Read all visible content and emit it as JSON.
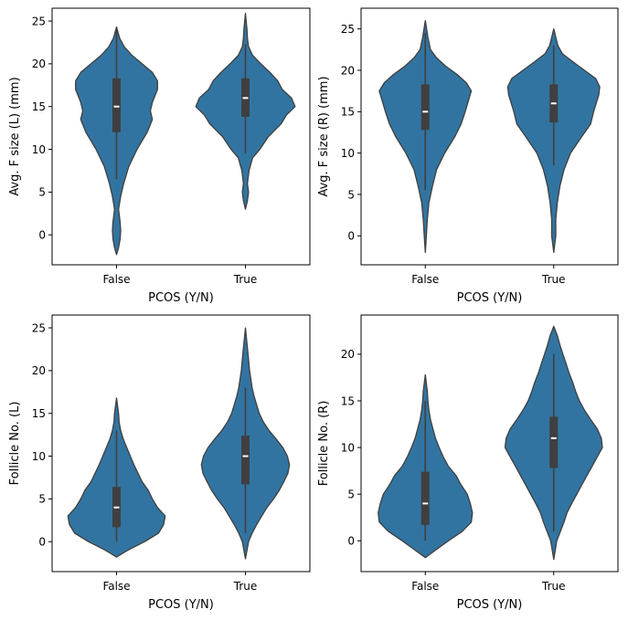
{
  "chart_data": [
    {
      "type": "violin",
      "xlabel": "PCOS (Y/N)",
      "ylabel": "Avg. F size (L) (mm)",
      "categories": [
        "False",
        "True"
      ],
      "ylim": [
        -3.5,
        26.5
      ],
      "yticks": [
        0,
        5,
        10,
        15,
        20,
        25
      ],
      "color": "#3274a1",
      "violins": [
        {
          "category": "False",
          "median": 15,
          "q1": 12,
          "q3": 18.3,
          "whisker_low": 6.5,
          "whisker_high": 24.2,
          "shape": [
            [
              -2.3,
              0
            ],
            [
              -1.5,
              0.04
            ],
            [
              -0.5,
              0.07
            ],
            [
              0.5,
              0.08
            ],
            [
              1.5,
              0.07
            ],
            [
              3,
              0.04
            ],
            [
              4.5,
              0.08
            ],
            [
              6,
              0.14
            ],
            [
              8,
              0.24
            ],
            [
              10,
              0.4
            ],
            [
              12,
              0.6
            ],
            [
              13.5,
              0.7
            ],
            [
              14.5,
              0.66
            ],
            [
              15.5,
              0.7
            ],
            [
              17,
              0.8
            ],
            [
              18,
              0.8
            ],
            [
              19,
              0.7
            ],
            [
              20,
              0.5
            ],
            [
              21,
              0.3
            ],
            [
              22,
              0.15
            ],
            [
              23,
              0.06
            ],
            [
              24.3,
              0
            ]
          ]
        },
        {
          "category": "True",
          "median": 16,
          "q1": 13.8,
          "q3": 18.3,
          "whisker_low": 9.5,
          "whisker_high": 22.3,
          "shape": [
            [
              3,
              0
            ],
            [
              4,
              0.04
            ],
            [
              5,
              0.06
            ],
            [
              6,
              0.04
            ],
            [
              7.5,
              0.07
            ],
            [
              9,
              0.14
            ],
            [
              10,
              0.28
            ],
            [
              11.5,
              0.45
            ],
            [
              13,
              0.7
            ],
            [
              14,
              0.8
            ],
            [
              15,
              0.97
            ],
            [
              16,
              0.9
            ],
            [
              17,
              0.72
            ],
            [
              18,
              0.63
            ],
            [
              19,
              0.48
            ],
            [
              20,
              0.3
            ],
            [
              21,
              0.14
            ],
            [
              22,
              0.06
            ],
            [
              23,
              0.04
            ],
            [
              24,
              0.03
            ],
            [
              25.9,
              0
            ]
          ]
        }
      ]
    },
    {
      "type": "violin",
      "xlabel": "PCOS (Y/N)",
      "ylabel": "Avg. F size (R) (mm)",
      "categories": [
        "False",
        "True"
      ],
      "ylim": [
        -3.5,
        27.5
      ],
      "yticks": [
        0,
        5,
        10,
        15,
        20,
        25
      ],
      "color": "#3274a1",
      "violins": [
        {
          "category": "False",
          "median": 15,
          "q1": 12.8,
          "q3": 18.3,
          "whisker_low": 5.5,
          "whisker_high": 24.5,
          "shape": [
            [
              -2,
              0
            ],
            [
              0,
              0.02
            ],
            [
              2,
              0.04
            ],
            [
              4,
              0.07
            ],
            [
              6,
              0.14
            ],
            [
              8,
              0.22
            ],
            [
              10,
              0.38
            ],
            [
              12,
              0.58
            ],
            [
              13.5,
              0.7
            ],
            [
              15,
              0.78
            ],
            [
              16.5,
              0.85
            ],
            [
              17.5,
              0.9
            ],
            [
              18.5,
              0.8
            ],
            [
              19.5,
              0.62
            ],
            [
              20.5,
              0.4
            ],
            [
              21.5,
              0.22
            ],
            [
              22.5,
              0.1
            ],
            [
              24,
              0.05
            ],
            [
              26,
              0
            ]
          ]
        },
        {
          "category": "True",
          "median": 16,
          "q1": 13.7,
          "q3": 18.3,
          "whisker_low": 8.5,
          "whisker_high": 23,
          "shape": [
            [
              -2,
              0
            ],
            [
              0,
              0.04
            ],
            [
              2,
              0.04
            ],
            [
              4,
              0.07
            ],
            [
              6,
              0.12
            ],
            [
              8,
              0.2
            ],
            [
              10,
              0.33
            ],
            [
              12,
              0.55
            ],
            [
              13.5,
              0.72
            ],
            [
              15,
              0.78
            ],
            [
              16,
              0.83
            ],
            [
              17,
              0.88
            ],
            [
              18,
              0.9
            ],
            [
              19,
              0.82
            ],
            [
              20,
              0.6
            ],
            [
              21,
              0.38
            ],
            [
              22,
              0.17
            ],
            [
              23,
              0.08
            ],
            [
              25,
              0
            ]
          ]
        }
      ]
    },
    {
      "type": "violin",
      "xlabel": "PCOS (Y/N)",
      "ylabel": "Follicle No. (L)",
      "categories": [
        "False",
        "True"
      ],
      "ylim": [
        -3.5,
        26.5
      ],
      "yticks": [
        0,
        5,
        10,
        15,
        20,
        25
      ],
      "color": "#3274a1",
      "violins": [
        {
          "category": "False",
          "median": 4,
          "q1": 1.7,
          "q3": 6.4,
          "whisker_low": 0,
          "whisker_high": 13,
          "shape": [
            [
              -1.8,
              0
            ],
            [
              -1,
              0.22
            ],
            [
              0,
              0.55
            ],
            [
              1,
              0.82
            ],
            [
              2,
              0.92
            ],
            [
              3,
              0.95
            ],
            [
              4,
              0.8
            ],
            [
              5,
              0.7
            ],
            [
              6,
              0.62
            ],
            [
              7,
              0.5
            ],
            [
              8,
              0.42
            ],
            [
              9,
              0.34
            ],
            [
              10,
              0.27
            ],
            [
              11,
              0.2
            ],
            [
              12,
              0.13
            ],
            [
              13,
              0.08
            ],
            [
              14,
              0.05
            ],
            [
              15,
              0.04
            ],
            [
              16.8,
              0
            ]
          ]
        },
        {
          "category": "True",
          "median": 10,
          "q1": 6.7,
          "q3": 12.4,
          "whisker_low": 1,
          "whisker_high": 18,
          "shape": [
            [
              -2,
              0
            ],
            [
              0,
              0.06
            ],
            [
              1,
              0.13
            ],
            [
              2,
              0.22
            ],
            [
              3,
              0.32
            ],
            [
              4,
              0.42
            ],
            [
              5,
              0.55
            ],
            [
              6,
              0.66
            ],
            [
              7,
              0.75
            ],
            [
              8,
              0.83
            ],
            [
              9,
              0.86
            ],
            [
              10,
              0.82
            ],
            [
              11,
              0.73
            ],
            [
              12,
              0.6
            ],
            [
              13,
              0.46
            ],
            [
              14,
              0.35
            ],
            [
              15,
              0.27
            ],
            [
              16,
              0.22
            ],
            [
              17,
              0.17
            ],
            [
              18,
              0.13
            ],
            [
              20,
              0.08
            ],
            [
              22,
              0.05
            ],
            [
              25,
              0
            ]
          ]
        }
      ]
    },
    {
      "type": "violin",
      "xlabel": "PCOS (Y/N)",
      "ylabel": "Follicle No. (R)",
      "categories": [
        "False",
        "True"
      ],
      "ylim": [
        -3.3,
        24.2
      ],
      "yticks": [
        0,
        5,
        10,
        15,
        20
      ],
      "color": "#3274a1",
      "violins": [
        {
          "category": "False",
          "median": 4,
          "q1": 1.7,
          "q3": 7.4,
          "whisker_low": 0,
          "whisker_high": 15,
          "shape": [
            [
              -1.8,
              0
            ],
            [
              -1,
              0.2
            ],
            [
              0,
              0.45
            ],
            [
              1,
              0.72
            ],
            [
              2,
              0.9
            ],
            [
              3,
              0.92
            ],
            [
              4,
              0.88
            ],
            [
              5,
              0.82
            ],
            [
              6,
              0.7
            ],
            [
              7,
              0.6
            ],
            [
              8,
              0.45
            ],
            [
              9,
              0.35
            ],
            [
              10,
              0.27
            ],
            [
              11,
              0.2
            ],
            [
              12,
              0.15
            ],
            [
              13,
              0.1
            ],
            [
              14,
              0.07
            ],
            [
              15,
              0.05
            ],
            [
              16,
              0.04
            ],
            [
              17.8,
              0
            ]
          ]
        },
        {
          "category": "True",
          "median": 11,
          "q1": 7.8,
          "q3": 13.3,
          "whisker_low": 1,
          "whisker_high": 20,
          "shape": [
            [
              -2,
              0
            ],
            [
              0,
              0.06
            ],
            [
              1,
              0.13
            ],
            [
              2,
              0.2
            ],
            [
              3,
              0.26
            ],
            [
              4,
              0.35
            ],
            [
              5,
              0.45
            ],
            [
              6,
              0.55
            ],
            [
              7,
              0.65
            ],
            [
              8,
              0.75
            ],
            [
              9,
              0.85
            ],
            [
              10,
              0.95
            ],
            [
              11,
              0.93
            ],
            [
              12,
              0.85
            ],
            [
              13,
              0.72
            ],
            [
              14,
              0.6
            ],
            [
              15,
              0.5
            ],
            [
              16,
              0.43
            ],
            [
              17,
              0.37
            ],
            [
              18,
              0.3
            ],
            [
              19,
              0.24
            ],
            [
              20,
              0.18
            ],
            [
              21,
              0.12
            ],
            [
              22,
              0.07
            ],
            [
              23,
              0
            ]
          ]
        }
      ]
    }
  ]
}
